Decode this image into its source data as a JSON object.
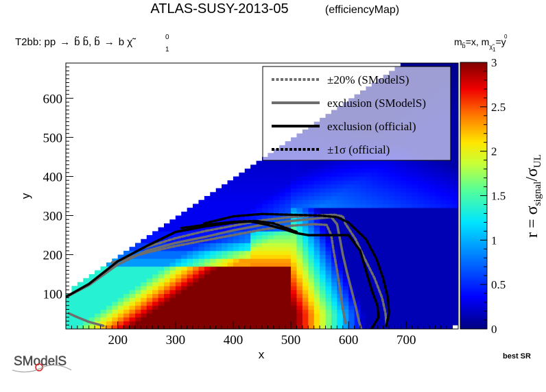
{
  "header": {
    "title": "ATLAS-SUSY-2013-05",
    "subtitle": "(efficiencyMap)",
    "process_prefix": "T2bb: pp",
    "process_body": "b̃ b̃, b̃",
    "process_tail": "b χ̃",
    "process_sup": "0",
    "process_sub": "1",
    "mass_text": "m",
    "mass_sub1": "b̃",
    "mass_mid": "=x, m",
    "mass_sub2": "χ̃",
    "mass_sub2b": "1",
    "mass_sup2": "0",
    "mass_end": "=y"
  },
  "footer": {
    "best_sr": "best SR",
    "logo_text": "SModelS"
  },
  "colors": {
    "official_line": "#000000",
    "smodels_line": "#6e6e6e",
    "saturated": "#800000"
  },
  "chart_data": {
    "type": "heatmap",
    "xlabel": "x",
    "ylabel": "y",
    "zlabel_main": "r = σ",
    "zlabel_sub1": "signal",
    "zlabel_slash": "/σ",
    "zlabel_sub2": "UL",
    "xlim": [
      110,
      790
    ],
    "ylim": [
      10,
      690
    ],
    "zlim": [
      0,
      3
    ],
    "x_ticks": [
      200,
      300,
      400,
      500,
      600,
      700
    ],
    "y_ticks": [
      100,
      200,
      300,
      400,
      500,
      600
    ],
    "z_ticks": [
      "0",
      "0.5",
      "1",
      "1.5",
      "2",
      "2.5",
      "3"
    ],
    "grid": false,
    "legend": {
      "placement": "top-right",
      "entries": [
        {
          "label": "±20% (SModelS)",
          "style": "dotted",
          "color": "#6e6e6e"
        },
        {
          "label": "exclusion (SModelS)",
          "style": "solid",
          "color": "#6e6e6e"
        },
        {
          "label": "exclusion (official)",
          "style": "solid",
          "color": "#000000"
        },
        {
          "label": "±1σ (official)",
          "style": "dotted",
          "color": "#000000"
        }
      ]
    },
    "exclusion_official": [
      [
        110,
        92
      ],
      [
        150,
        125
      ],
      [
        200,
        183
      ],
      [
        250,
        222
      ],
      [
        300,
        258
      ],
      [
        350,
        272
      ],
      [
        400,
        282
      ],
      [
        430,
        285
      ],
      [
        460,
        276
      ],
      [
        490,
        264
      ],
      [
        510,
        255
      ],
      [
        530,
        250
      ],
      [
        548,
        250
      ],
      [
        600,
        250
      ],
      [
        620,
        210
      ],
      [
        630,
        160
      ],
      [
        640,
        110
      ],
      [
        650,
        70
      ],
      [
        652,
        40
      ],
      [
        640,
        10
      ]
    ],
    "official_plus1sigma": [
      [
        350,
        280
      ],
      [
        400,
        298
      ],
      [
        450,
        304
      ],
      [
        500,
        302
      ],
      [
        550,
        300
      ],
      [
        580,
        296
      ],
      [
        600,
        282
      ],
      [
        630,
        240
      ],
      [
        648,
        190
      ],
      [
        660,
        140
      ],
      [
        668,
        90
      ],
      [
        670,
        50
      ],
      [
        665,
        15
      ]
    ],
    "official_minus1sigma": [
      [
        310,
        268
      ],
      [
        350,
        276
      ],
      [
        400,
        284
      ],
      [
        440,
        286
      ],
      [
        470,
        280
      ],
      [
        510,
        258
      ]
    ],
    "exclusion_smodels": [
      [
        115,
        95
      ],
      [
        150,
        122
      ],
      [
        200,
        175
      ],
      [
        250,
        210
      ],
      [
        300,
        230
      ],
      [
        350,
        245
      ],
      [
        400,
        262
      ],
      [
        450,
        276
      ],
      [
        500,
        286
      ],
      [
        540,
        292
      ],
      [
        570,
        296
      ],
      [
        580,
        278
      ],
      [
        585,
        240
      ],
      [
        590,
        200
      ],
      [
        598,
        150
      ],
      [
        605,
        110
      ],
      [
        612,
        70
      ],
      [
        618,
        30
      ],
      [
        622,
        10
      ]
    ],
    "smodels_plus20": [
      [
        240,
        215
      ],
      [
        300,
        242
      ],
      [
        350,
        260
      ],
      [
        400,
        274
      ],
      [
        450,
        288
      ],
      [
        500,
        296
      ],
      [
        540,
        300
      ],
      [
        575,
        302
      ],
      [
        590,
        298
      ],
      [
        595,
        278
      ],
      [
        612,
        240
      ],
      [
        628,
        190
      ],
      [
        645,
        140
      ],
      [
        658,
        90
      ],
      [
        664,
        50
      ],
      [
        666,
        15
      ]
    ],
    "smodels_minus20": [
      [
        190,
        180
      ],
      [
        250,
        205
      ],
      [
        300,
        222
      ],
      [
        350,
        236
      ],
      [
        400,
        250
      ],
      [
        450,
        264
      ],
      [
        500,
        274
      ],
      [
        540,
        278
      ],
      [
        562,
        276
      ],
      [
        570,
        250
      ],
      [
        574,
        210
      ],
      [
        580,
        160
      ],
      [
        585,
        110
      ],
      [
        590,
        60
      ],
      [
        595,
        25
      ]
    ],
    "smodels_low_segment": [
      [
        115,
        50
      ],
      [
        130,
        40
      ],
      [
        150,
        28
      ],
      [
        175,
        18
      ]
    ]
  }
}
